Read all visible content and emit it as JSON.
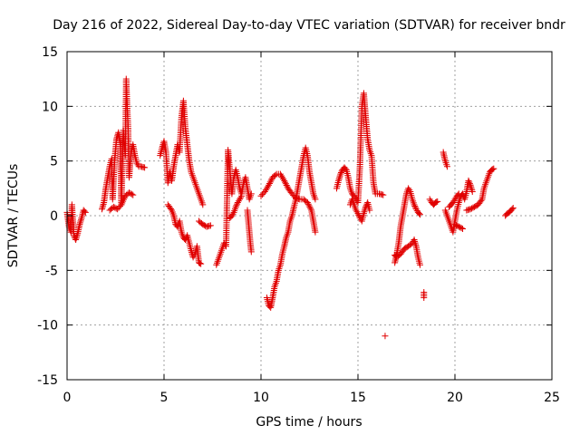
{
  "chart_data": {
    "type": "scatter",
    "title": "Day 216 of 2022, Sidereal Day-to-day VTEC variation (SDTVAR) for receiver bndr",
    "xlabel": "GPS time / hours",
    "ylabel": "SDTVAR / TECUs",
    "xlim": [
      0,
      25
    ],
    "ylim": [
      -15,
      15
    ],
    "xticks": [
      0,
      5,
      10,
      15,
      20,
      25
    ],
    "yticks": [
      -15,
      -10,
      -5,
      0,
      5,
      10,
      15
    ],
    "xtick_labels": [
      "0",
      "5",
      "10",
      "15",
      "20",
      "25"
    ],
    "ytick_labels": [
      "-15",
      "-10",
      "-5",
      "0",
      "5",
      "10",
      "15"
    ],
    "grid": true,
    "marker": "+",
    "color": "#e00000",
    "series": [
      {
        "name": "SDTVAR",
        "segments": [
          [
            [
              0.0,
              0.3
            ],
            [
              0.1,
              -1.0
            ],
            [
              0.2,
              -1.5
            ],
            [
              0.25,
              1.0
            ],
            [
              0.35,
              -1.8
            ],
            [
              0.45,
              -2.2
            ],
            [
              0.55,
              -1.6
            ],
            [
              0.65,
              -0.8
            ],
            [
              0.75,
              -0.2
            ],
            [
              0.85,
              0.5
            ],
            [
              0.95,
              0.3
            ]
          ],
          [
            [
              1.8,
              0.6
            ],
            [
              1.9,
              1.2
            ],
            [
              2.0,
              2.5
            ],
            [
              2.1,
              3.5
            ],
            [
              2.2,
              4.5
            ],
            [
              2.3,
              5.2
            ],
            [
              2.35,
              1.5
            ],
            [
              2.45,
              5.0
            ],
            [
              2.55,
              7.0
            ],
            [
              2.65,
              7.6
            ],
            [
              2.75,
              6.5
            ],
            [
              2.8,
              1.0
            ],
            [
              2.9,
              7.8
            ],
            [
              3.0,
              5.5
            ],
            [
              3.05,
              12.5
            ],
            [
              3.1,
              10.0
            ],
            [
              3.15,
              8.0
            ],
            [
              3.2,
              3.5
            ],
            [
              3.3,
              5.8
            ],
            [
              3.4,
              6.5
            ],
            [
              3.5,
              5.5
            ],
            [
              3.6,
              4.8
            ],
            [
              3.7,
              4.5
            ],
            [
              3.8,
              4.5
            ],
            [
              4.0,
              4.4
            ]
          ],
          [
            [
              2.2,
              0.5
            ],
            [
              2.4,
              0.8
            ],
            [
              2.6,
              0.6
            ],
            [
              2.8,
              1.0
            ],
            [
              3.0,
              1.8
            ],
            [
              3.2,
              2.1
            ],
            [
              3.4,
              1.9
            ]
          ],
          [
            [
              4.8,
              5.5
            ],
            [
              4.9,
              6.2
            ],
            [
              5.0,
              6.8
            ],
            [
              5.1,
              5.8
            ],
            [
              5.2,
              3.0
            ],
            [
              5.3,
              4.0
            ],
            [
              5.4,
              3.2
            ],
            [
              5.5,
              4.5
            ],
            [
              5.6,
              5.5
            ],
            [
              5.7,
              6.5
            ],
            [
              5.8,
              5.8
            ],
            [
              5.9,
              9.0
            ],
            [
              6.0,
              10.5
            ],
            [
              6.1,
              8.0
            ],
            [
              6.2,
              6.5
            ],
            [
              6.3,
              5.0
            ],
            [
              6.4,
              4.0
            ],
            [
              6.5,
              3.5
            ],
            [
              6.6,
              3.0
            ],
            [
              6.7,
              2.5
            ],
            [
              6.8,
              2.0
            ],
            [
              6.9,
              1.5
            ],
            [
              7.0,
              1.0
            ]
          ],
          [
            [
              5.2,
              1.0
            ],
            [
              5.4,
              0.5
            ],
            [
              5.5,
              0.0
            ],
            [
              5.6,
              -0.8
            ],
            [
              5.7,
              -1.0
            ],
            [
              5.8,
              -0.5
            ],
            [
              5.9,
              -1.5
            ],
            [
              6.0,
              -2.0
            ],
            [
              6.1,
              -2.2
            ],
            [
              6.2,
              -1.8
            ],
            [
              6.3,
              -2.5
            ],
            [
              6.4,
              -3.2
            ],
            [
              6.5,
              -3.8
            ],
            [
              6.6,
              -3.5
            ],
            [
              6.7,
              -2.8
            ],
            [
              6.8,
              -4.3
            ],
            [
              6.9,
              -4.4
            ]
          ],
          [
            [
              6.8,
              -0.5
            ],
            [
              7.0,
              -0.8
            ],
            [
              7.2,
              -1.0
            ],
            [
              7.4,
              -0.9
            ]
          ],
          [
            [
              7.7,
              -4.5
            ],
            [
              7.8,
              -4.0
            ],
            [
              7.9,
              -3.5
            ],
            [
              8.0,
              -3.0
            ],
            [
              8.1,
              -2.5
            ],
            [
              8.2,
              -2.8
            ],
            [
              8.3,
              6.0
            ],
            [
              8.4,
              4.0
            ],
            [
              8.5,
              2.0
            ],
            [
              8.6,
              3.5
            ],
            [
              8.7,
              4.2
            ],
            [
              8.8,
              3.5
            ],
            [
              8.9,
              2.5
            ],
            [
              9.0,
              2.0
            ],
            [
              9.1,
              3.0
            ],
            [
              9.2,
              3.5
            ],
            [
              9.3,
              2.5
            ],
            [
              9.4,
              1.5
            ],
            [
              9.5,
              2.0
            ]
          ],
          [
            [
              8.4,
              -0.2
            ],
            [
              8.5,
              0.0
            ],
            [
              8.6,
              0.3
            ],
            [
              8.7,
              0.8
            ],
            [
              8.8,
              1.2
            ],
            [
              8.9,
              1.5
            ],
            [
              9.0,
              1.8
            ]
          ],
          [
            [
              9.3,
              0.5
            ],
            [
              9.35,
              -0.5
            ],
            [
              9.4,
              -1.5
            ],
            [
              9.45,
              -2.5
            ],
            [
              9.5,
              -3.3
            ]
          ],
          [
            [
              10.3,
              -7.5
            ],
            [
              10.4,
              -8.2
            ],
            [
              10.5,
              -8.4
            ],
            [
              10.6,
              -7.5
            ],
            [
              10.7,
              -6.5
            ],
            [
              10.8,
              -6.0
            ],
            [
              10.9,
              -5.0
            ],
            [
              11.0,
              -4.5
            ],
            [
              11.1,
              -3.5
            ],
            [
              11.2,
              -2.8
            ],
            [
              11.3,
              -2.0
            ],
            [
              11.4,
              -1.5
            ],
            [
              11.5,
              -0.5
            ],
            [
              11.6,
              0.0
            ],
            [
              11.7,
              0.8
            ],
            [
              11.8,
              1.5
            ],
            [
              11.9,
              2.5
            ],
            [
              12.0,
              3.5
            ],
            [
              12.1,
              4.5
            ],
            [
              12.2,
              5.5
            ],
            [
              12.3,
              6.2
            ],
            [
              12.4,
              5.5
            ],
            [
              12.5,
              4.0
            ],
            [
              12.6,
              3.0
            ],
            [
              12.7,
              2.0
            ],
            [
              12.8,
              1.5
            ]
          ],
          [
            [
              10.0,
              1.8
            ],
            [
              10.2,
              2.2
            ],
            [
              10.4,
              2.8
            ],
            [
              10.6,
              3.5
            ],
            [
              10.8,
              3.8
            ],
            [
              11.0,
              3.8
            ],
            [
              11.2,
              3.2
            ],
            [
              11.4,
              2.5
            ],
            [
              11.6,
              2.0
            ],
            [
              11.8,
              1.6
            ],
            [
              12.0,
              1.5
            ],
            [
              12.2,
              1.5
            ],
            [
              12.4,
              1.2
            ],
            [
              12.6,
              0.5
            ],
            [
              12.7,
              -0.5
            ],
            [
              12.8,
              -1.5
            ]
          ],
          [
            [
              13.9,
              2.5
            ],
            [
              14.0,
              3.2
            ],
            [
              14.1,
              3.8
            ],
            [
              14.2,
              4.2
            ],
            [
              14.3,
              4.4
            ],
            [
              14.4,
              4.2
            ],
            [
              14.5,
              3.5
            ],
            [
              14.6,
              2.5
            ],
            [
              14.7,
              2.0
            ],
            [
              14.8,
              1.8
            ],
            [
              14.9,
              1.5
            ],
            [
              15.0,
              1.2
            ],
            [
              15.1,
              4.5
            ],
            [
              15.2,
              10.0
            ],
            [
              15.3,
              11.2
            ],
            [
              15.4,
              9.0
            ],
            [
              15.5,
              7.0
            ],
            [
              15.6,
              6.0
            ],
            [
              15.7,
              5.5
            ],
            [
              15.8,
              3.0
            ],
            [
              15.9,
              2.0
            ],
            [
              16.0,
              2.0
            ],
            [
              16.1,
              2.0
            ],
            [
              16.3,
              1.9
            ]
          ],
          [
            [
              14.6,
              1.0
            ],
            [
              14.7,
              1.5
            ],
            [
              14.8,
              1.0
            ],
            [
              14.9,
              0.5
            ],
            [
              15.0,
              0.2
            ],
            [
              15.1,
              -0.2
            ],
            [
              15.2,
              -0.5
            ],
            [
              15.3,
              0.2
            ],
            [
              15.4,
              0.8
            ],
            [
              15.5,
              1.2
            ],
            [
              15.6,
              0.5
            ]
          ],
          [
            [
              16.9,
              -4.3
            ],
            [
              17.0,
              -3.5
            ],
            [
              17.1,
              -2.5
            ],
            [
              17.2,
              -1.0
            ],
            [
              17.3,
              0.0
            ],
            [
              17.4,
              1.0
            ],
            [
              17.5,
              2.0
            ],
            [
              17.6,
              2.5
            ],
            [
              17.7,
              2.2
            ],
            [
              17.8,
              1.5
            ],
            [
              17.9,
              1.0
            ],
            [
              18.0,
              0.6
            ],
            [
              18.1,
              0.3
            ],
            [
              18.2,
              0.1
            ]
          ],
          [
            [
              16.9,
              -3.6
            ],
            [
              17.0,
              -3.8
            ],
            [
              17.2,
              -3.5
            ],
            [
              17.4,
              -3.0
            ],
            [
              17.6,
              -2.8
            ],
            [
              17.8,
              -2.5
            ],
            [
              17.9,
              -2.2
            ],
            [
              18.0,
              -2.8
            ],
            [
              18.1,
              -3.8
            ],
            [
              18.2,
              -4.5
            ]
          ],
          [
            [
              16.4,
              -11.0
            ]
          ],
          [
            [
              18.4,
              -7.0
            ],
            [
              18.4,
              -7.5
            ]
          ],
          [
            [
              18.7,
              1.5
            ],
            [
              18.8,
              1.2
            ],
            [
              18.9,
              1.0
            ],
            [
              19.0,
              1.2
            ],
            [
              19.1,
              1.3
            ]
          ],
          [
            [
              19.4,
              5.8
            ],
            [
              19.5,
              5.0
            ],
            [
              19.6,
              4.5
            ]
          ],
          [
            [
              19.5,
              0.5
            ],
            [
              19.6,
              0.0
            ],
            [
              19.7,
              -0.5
            ],
            [
              19.8,
              -1.0
            ],
            [
              19.9,
              -1.5
            ],
            [
              20.0,
              -0.5
            ],
            [
              20.1,
              0.5
            ],
            [
              20.2,
              1.2
            ],
            [
              20.3,
              1.8
            ],
            [
              20.4,
              2.0
            ],
            [
              20.5,
              1.5
            ],
            [
              20.6,
              2.2
            ],
            [
              20.7,
              3.2
            ],
            [
              20.8,
              2.8
            ],
            [
              20.9,
              2.2
            ]
          ],
          [
            [
              19.7,
              0.8
            ],
            [
              19.8,
              1.0
            ],
            [
              19.9,
              1.2
            ],
            [
              20.0,
              1.5
            ],
            [
              20.1,
              1.8
            ],
            [
              20.2,
              2.0
            ]
          ],
          [
            [
              20.0,
              -0.8
            ],
            [
              20.2,
              -1.0
            ],
            [
              20.4,
              -1.2
            ]
          ],
          [
            [
              20.6,
              0.5
            ],
            [
              20.8,
              0.6
            ],
            [
              21.0,
              0.8
            ],
            [
              21.2,
              1.0
            ],
            [
              21.4,
              1.5
            ],
            [
              21.5,
              2.5
            ],
            [
              21.6,
              3.0
            ],
            [
              21.7,
              3.5
            ],
            [
              21.8,
              4.0
            ],
            [
              21.9,
              4.2
            ],
            [
              22.0,
              4.3
            ]
          ],
          [
            [
              22.6,
              0.0
            ],
            [
              22.7,
              0.2
            ],
            [
              22.8,
              0.3
            ],
            [
              22.9,
              0.5
            ],
            [
              23.0,
              0.7
            ]
          ]
        ]
      }
    ]
  }
}
